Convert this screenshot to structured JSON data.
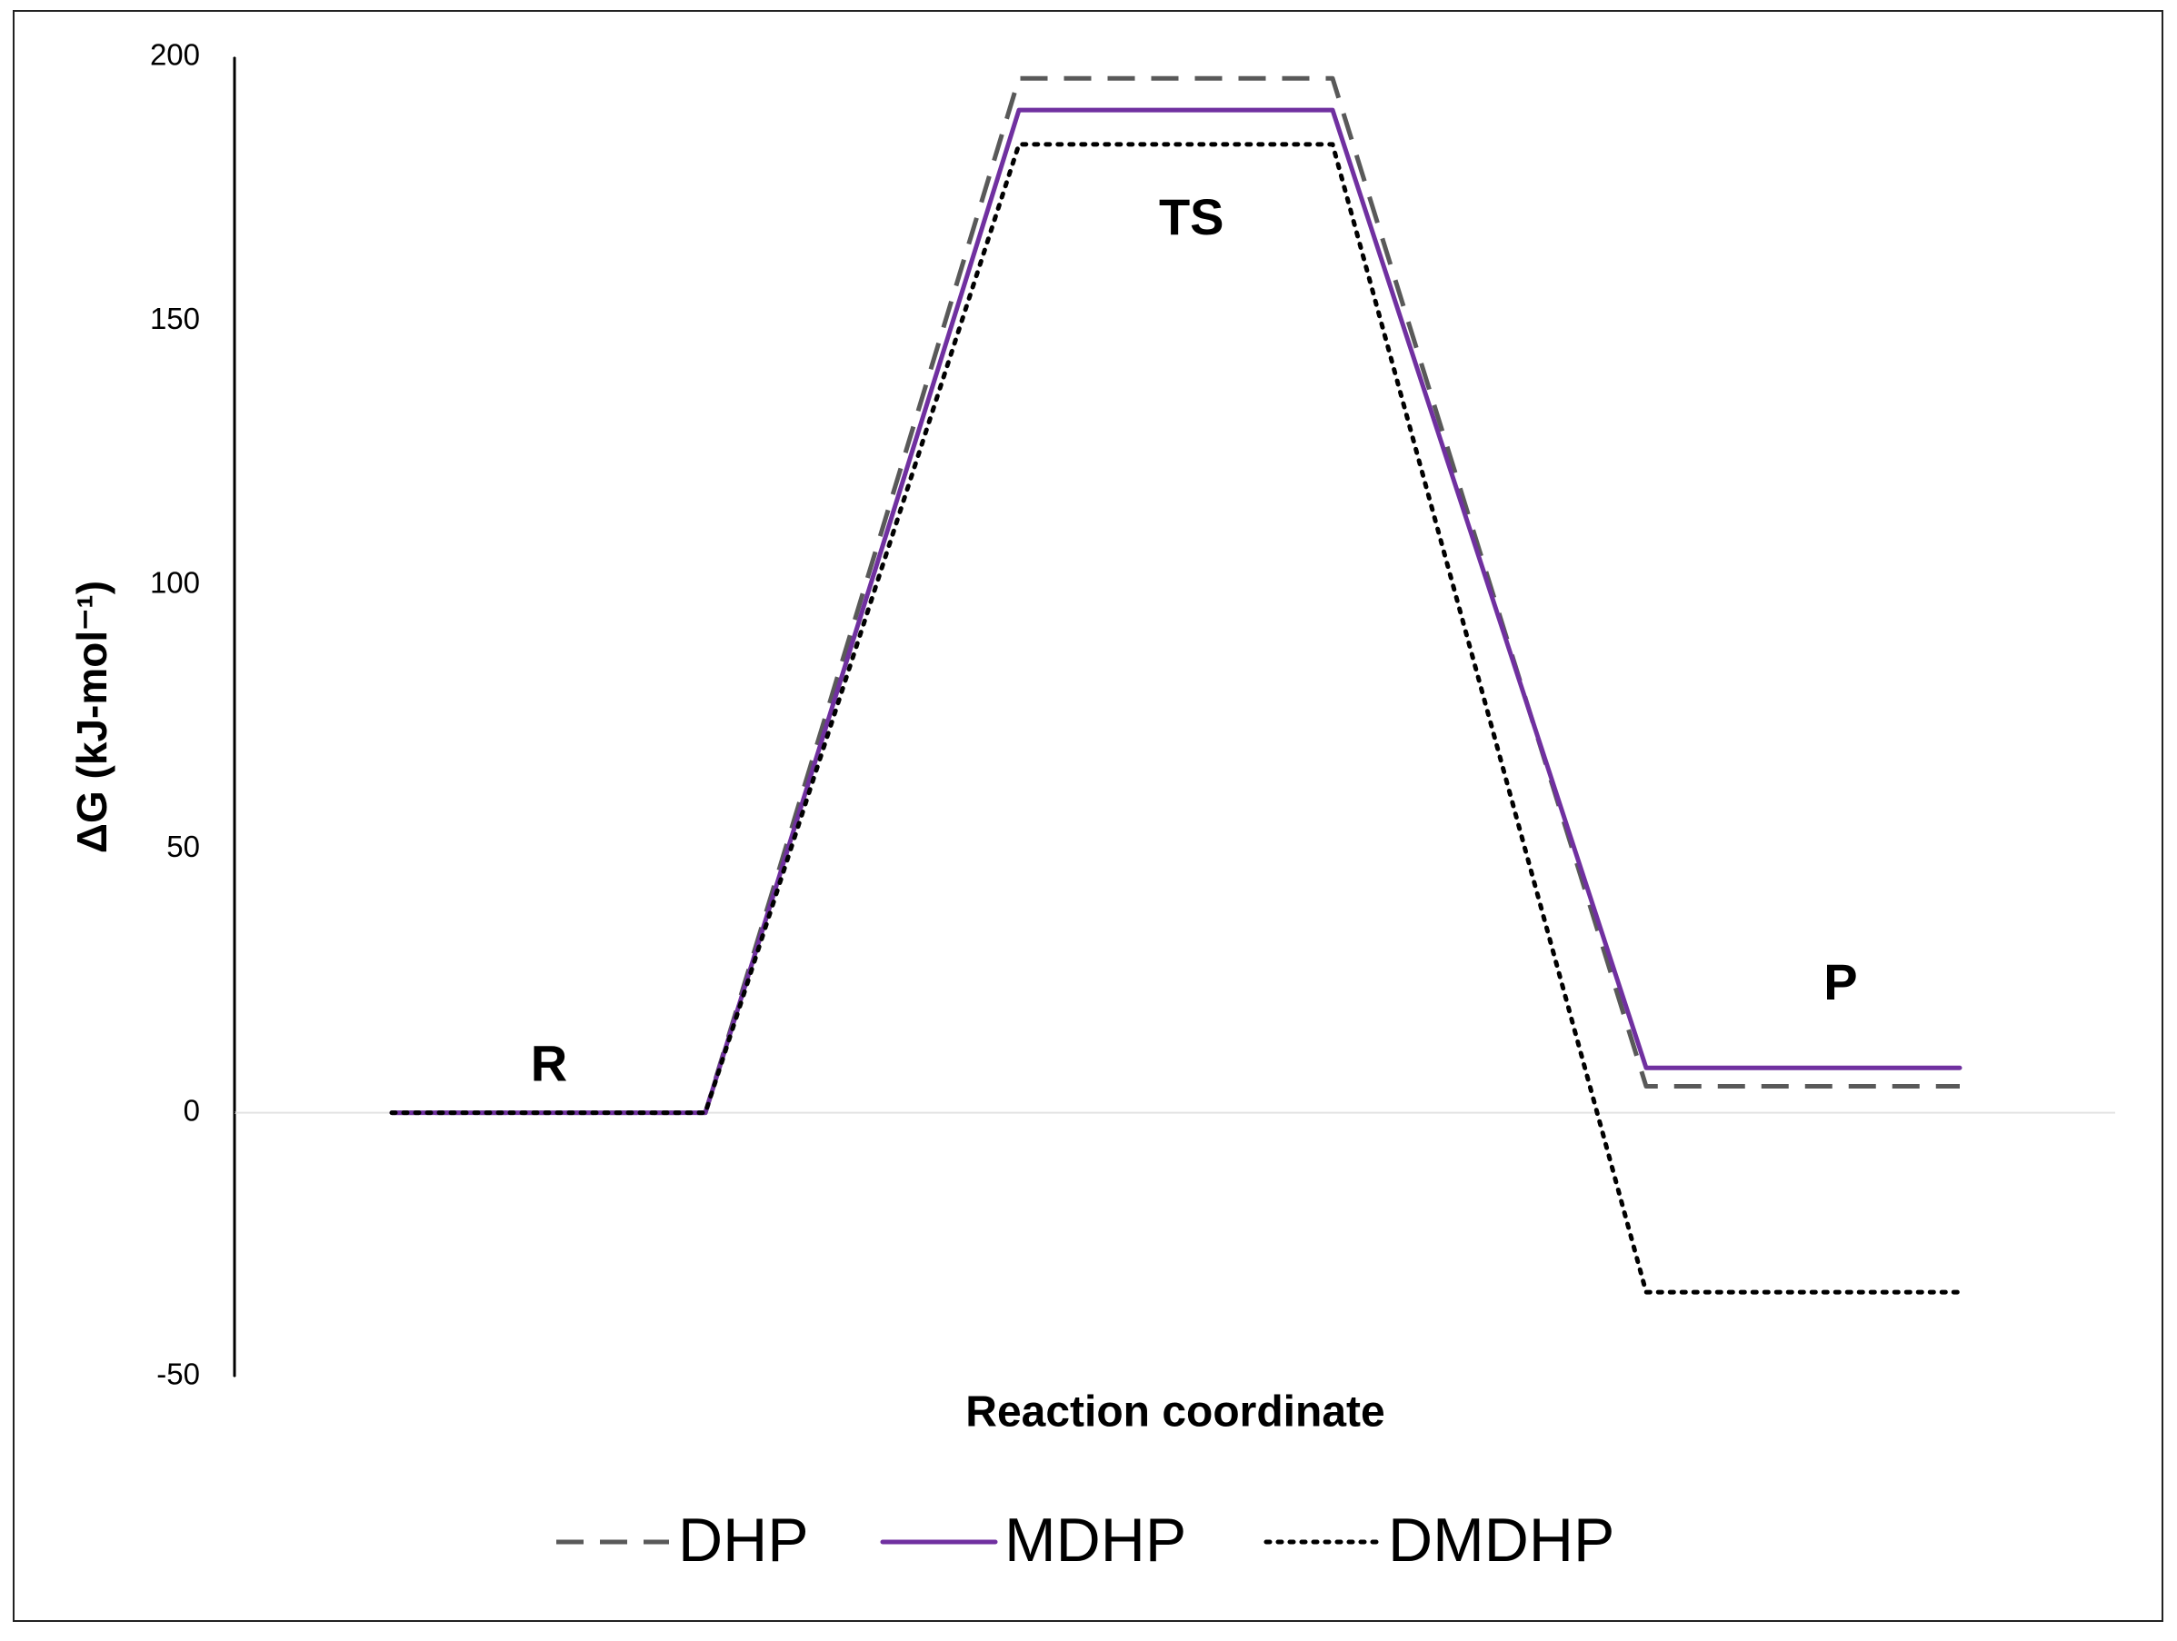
{
  "chart_data": {
    "type": "line",
    "ylabel": "ΔG  (kJ-mol⁻¹)",
    "xlabel": "Reaction coordinate",
    "categories": [
      null,
      null,
      null,
      null,
      null,
      null
    ],
    "series": [
      {
        "name": "DHP",
        "color": "#595959",
        "style": "dashed",
        "values": [
          0,
          0,
          196,
          196,
          5,
          5
        ]
      },
      {
        "name": "MDHP",
        "color": "#7030a0",
        "style": "solid",
        "values": [
          0,
          0,
          190,
          190,
          8.5,
          8.5
        ]
      },
      {
        "name": "DMDHP",
        "color": "#000000",
        "style": "dotted",
        "values": [
          0,
          0,
          183.5,
          183.5,
          -34,
          -34
        ]
      }
    ],
    "annotations": [
      "R",
      "TS",
      "P"
    ],
    "ylim": [
      -50,
      200
    ],
    "yticks": [
      -50,
      0,
      50,
      100,
      150,
      200
    ],
    "legend": "bottom"
  }
}
